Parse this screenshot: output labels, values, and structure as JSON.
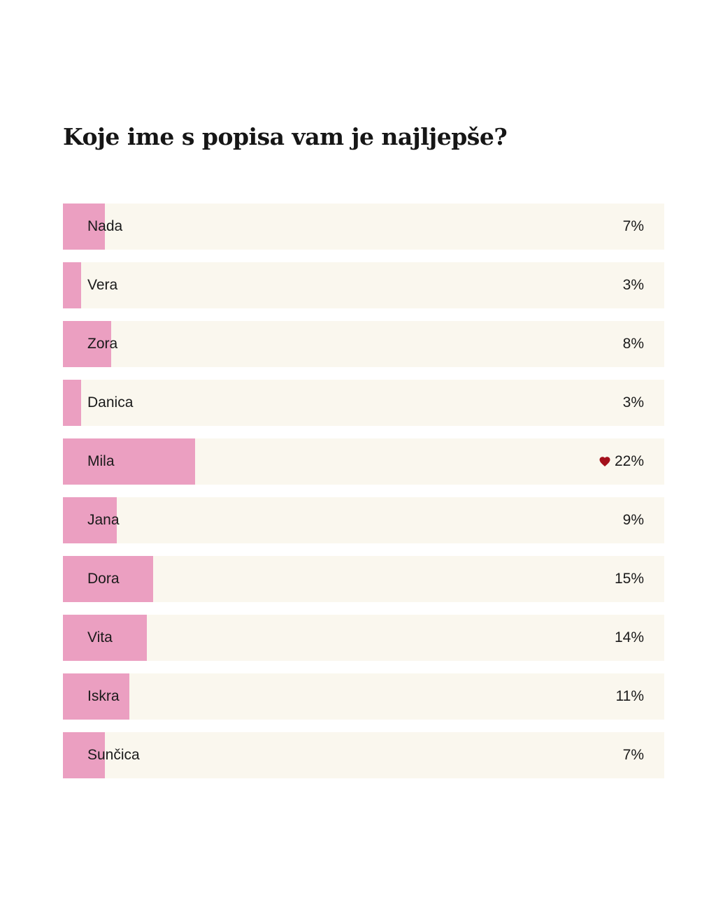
{
  "poll": {
    "title": "Koje ime s popisa vam je najljepše?",
    "accent_color": "#eb9fc1",
    "track_color": "#faf7ee",
    "heart_color": "#a3101b",
    "options": [
      {
        "label": "Nada",
        "percent": "7%",
        "value": 7,
        "voted": false
      },
      {
        "label": "Vera",
        "percent": "3%",
        "value": 3,
        "voted": false
      },
      {
        "label": "Zora",
        "percent": "8%",
        "value": 8,
        "voted": false
      },
      {
        "label": "Danica",
        "percent": "3%",
        "value": 3,
        "voted": false
      },
      {
        "label": "Mila",
        "percent": "22%",
        "value": 22,
        "voted": true,
        "icon": "heart-icon"
      },
      {
        "label": "Jana",
        "percent": "9%",
        "value": 9,
        "voted": false
      },
      {
        "label": "Dora",
        "percent": "15%",
        "value": 15,
        "voted": false
      },
      {
        "label": "Vita",
        "percent": "14%",
        "value": 14,
        "voted": false
      },
      {
        "label": "Iskra",
        "percent": "11%",
        "value": 11,
        "voted": false
      },
      {
        "label": "Sunčica",
        "percent": "7%",
        "value": 7,
        "voted": false
      }
    ]
  }
}
